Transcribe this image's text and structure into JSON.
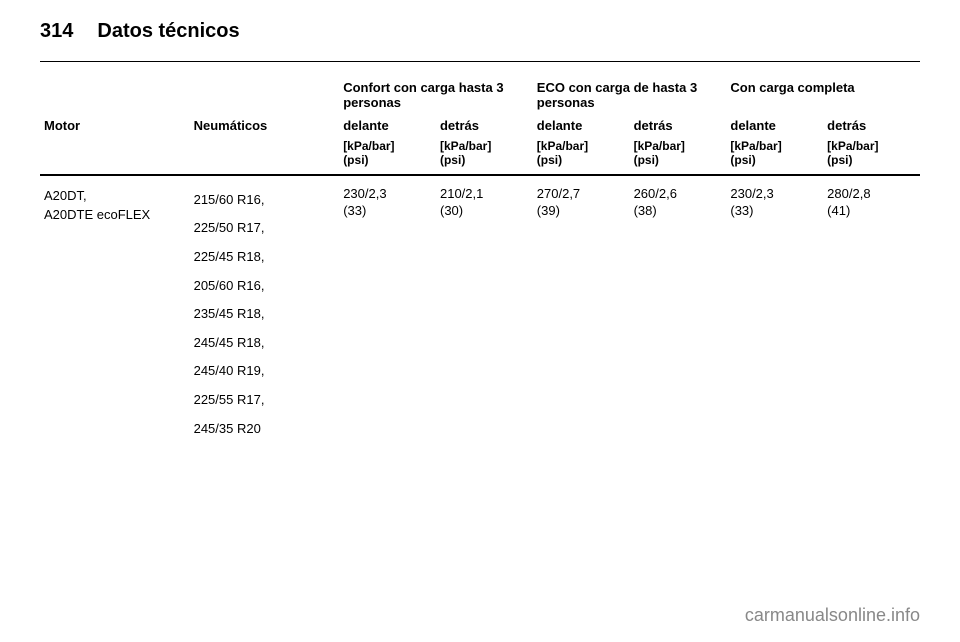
{
  "page": {
    "number": "314",
    "section": "Datos técnicos"
  },
  "table": {
    "groupHeaders": {
      "comfort": "Confort con carga hasta 3 personas",
      "eco": "ECO con carga de hasta 3 personas",
      "full": "Con carga completa"
    },
    "colHeaders": {
      "motor": "Motor",
      "tires": "Neumáticos",
      "front": "delante",
      "rear": "detrás"
    },
    "unitHeader": {
      "line1": "[kPa/bar]",
      "line2": "(psi)"
    },
    "row": {
      "motor": {
        "l1": "A20DT,",
        "l2": "A20DTE ecoFLEX"
      },
      "tires": [
        "215/60 R16,",
        "225/50 R17,",
        "225/45 R18,",
        "205/60 R16,",
        "235/45 R18,",
        "245/45 R18,",
        "245/40 R19,",
        "225/55 R17,",
        "245/35 R20"
      ],
      "values": {
        "comfort_front": {
          "l1": "230/2,3",
          "l2": "(33)"
        },
        "comfort_rear": {
          "l1": "210/2,1",
          "l2": "(30)"
        },
        "eco_front": {
          "l1": "270/2,7",
          "l2": "(39)"
        },
        "eco_rear": {
          "l1": "260/2,6",
          "l2": "(38)"
        },
        "full_front": {
          "l1": "230/2,3",
          "l2": "(33)"
        },
        "full_rear": {
          "l1": "280/2,8",
          "l2": "(41)"
        }
      }
    }
  },
  "watermark": "carmanualsonline.info"
}
